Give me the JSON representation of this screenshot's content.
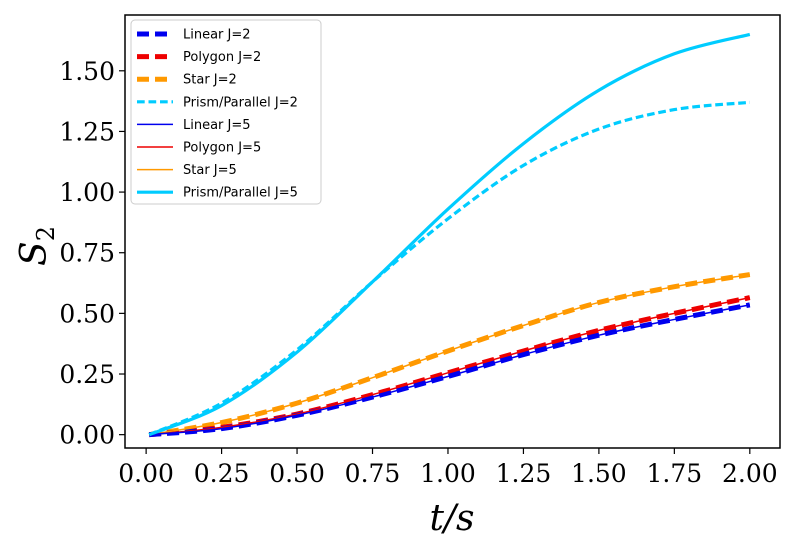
{
  "chart_data": {
    "type": "line",
    "title": "",
    "xlabel": "t/s",
    "ylabel_main": "S",
    "ylabel_sub": "2",
    "xlim": [
      -0.07,
      2.1
    ],
    "ylim": [
      -0.055,
      1.73
    ],
    "xticks": [
      0.0,
      0.25,
      0.5,
      0.75,
      1.0,
      1.25,
      1.5,
      1.75,
      2.0
    ],
    "xtick_labels": [
      "0.00",
      "0.25",
      "0.50",
      "0.75",
      "1.00",
      "1.25",
      "1.50",
      "1.75",
      "2.00"
    ],
    "yticks": [
      0.0,
      0.25,
      0.5,
      0.75,
      1.0,
      1.25,
      1.5
    ],
    "ytick_labels": [
      "0.00",
      "0.25",
      "0.50",
      "0.75",
      "1.00",
      "1.25",
      "1.50"
    ],
    "grid": false,
    "legend_position": "top-left",
    "x": [
      0.01,
      0.25,
      0.5,
      0.75,
      1.0,
      1.25,
      1.5,
      1.75,
      2.0
    ],
    "series": [
      {
        "name": "Linear J=2",
        "color": "#0000ee",
        "style": "dashed",
        "width": "thick",
        "values": [
          0.0,
          0.025,
          0.08,
          0.155,
          0.24,
          0.33,
          0.41,
          0.475,
          0.535
        ]
      },
      {
        "name": "Polygon J=2",
        "color": "#ee0000",
        "style": "dashed",
        "width": "thick",
        "values": [
          0.0,
          0.03,
          0.085,
          0.165,
          0.255,
          0.345,
          0.43,
          0.5,
          0.565
        ]
      },
      {
        "name": "Star J=2",
        "color": "#ff9900",
        "style": "dashed",
        "width": "thick",
        "values": [
          0.0,
          0.05,
          0.13,
          0.235,
          0.345,
          0.45,
          0.545,
          0.61,
          0.66
        ]
      },
      {
        "name": "Prism/Parallel J=2",
        "color": "#00ccff",
        "style": "dashed",
        "width": "medium",
        "values": [
          0.0,
          0.13,
          0.35,
          0.63,
          0.89,
          1.11,
          1.26,
          1.34,
          1.37
        ]
      },
      {
        "name": "Linear J=5",
        "color": "#0000ee",
        "style": "solid",
        "width": "thin",
        "values": [
          0.0,
          0.025,
          0.08,
          0.155,
          0.24,
          0.33,
          0.41,
          0.475,
          0.535
        ]
      },
      {
        "name": "Polygon J=5",
        "color": "#ee0000",
        "style": "solid",
        "width": "thin",
        "values": [
          0.0,
          0.03,
          0.085,
          0.165,
          0.255,
          0.345,
          0.43,
          0.5,
          0.565
        ]
      },
      {
        "name": "Star J=5",
        "color": "#ff9900",
        "style": "solid",
        "width": "thin",
        "values": [
          0.0,
          0.05,
          0.13,
          0.235,
          0.345,
          0.45,
          0.545,
          0.61,
          0.66
        ]
      },
      {
        "name": "Prism/Parallel J=5",
        "color": "#00ccff",
        "style": "solid",
        "width": "medium",
        "values": [
          0.0,
          0.12,
          0.34,
          0.63,
          0.93,
          1.2,
          1.42,
          1.57,
          1.65
        ]
      }
    ]
  }
}
